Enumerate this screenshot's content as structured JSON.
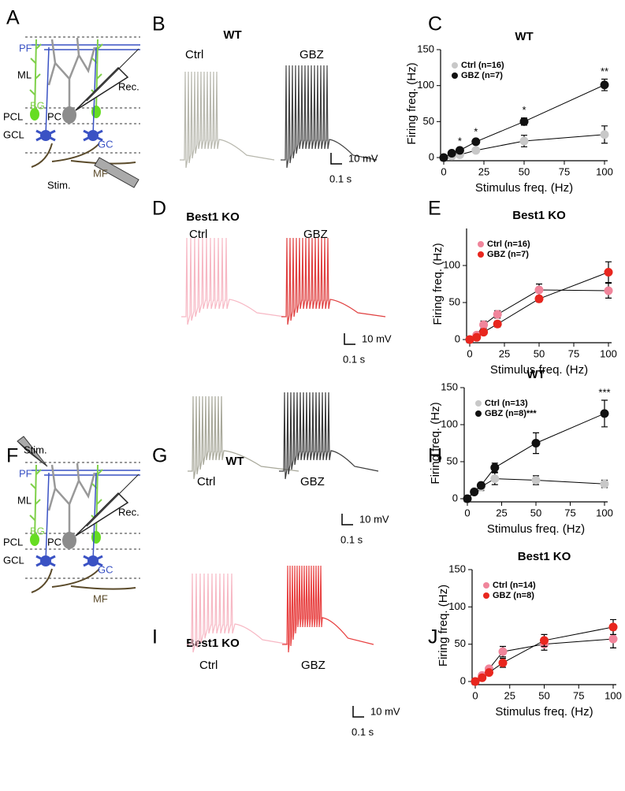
{
  "panel_labels": [
    "A",
    "B",
    "C",
    "D",
    "E",
    "F",
    "G",
    "H",
    "I",
    "J"
  ],
  "diagrams": [
    {
      "labels": [
        "PF",
        "ML",
        "BG",
        "PCL",
        "PC",
        "GCL",
        "GC",
        "MF",
        "Rec.",
        "Stim."
      ]
    },
    {
      "labels": [
        "PF",
        "ML",
        "BG",
        "PCL",
        "PC",
        "GCL",
        "GC",
        "MF",
        "Rec.",
        "Stim."
      ]
    }
  ],
  "traces": [
    {
      "title": "WT",
      "conditions": [
        "Ctrl",
        "GBZ"
      ],
      "scale": [
        "10 mV",
        "0.1 s"
      ]
    },
    {
      "title": "Best1 KO",
      "conditions": [
        "Ctrl",
        "GBZ"
      ],
      "scale": [
        "10 mV",
        "0.1 s"
      ]
    },
    {
      "title": "WT",
      "conditions": [
        "Ctrl",
        "GBZ"
      ],
      "scale": [
        "10 mV",
        "0.1 s"
      ]
    },
    {
      "title": "Best1 KO",
      "conditions": [
        "Ctrl",
        "GBZ"
      ],
      "scale": [
        "10 mV",
        "0.1 s"
      ]
    }
  ],
  "chart_data": [
    {
      "type": "line",
      "title": "WT",
      "xlabel": "Stimulus freq. (Hz)",
      "ylabel": "Firing freq. (Hz)",
      "x": [
        0,
        5,
        10,
        20,
        50,
        100
      ],
      "xlim": [
        0,
        100
      ],
      "xticks": [
        0,
        25,
        50,
        75,
        100
      ],
      "ylim": [
        0,
        150
      ],
      "yticks": [
        0,
        50,
        100,
        150
      ],
      "legend": "upper left",
      "series": [
        {
          "name": "Ctrl (n=16)",
          "color": "#c8c8c8",
          "values": [
            0,
            2,
            4,
            10,
            23,
            32
          ],
          "errors": [
            0,
            1,
            2,
            3,
            8,
            12
          ]
        },
        {
          "name": "GBZ (n=7)",
          "color": "#111111",
          "values": [
            0,
            6,
            10,
            22,
            50,
            101
          ],
          "errors": [
            0,
            2,
            2,
            3,
            5,
            8
          ],
          "significance": [
            null,
            null,
            "*",
            "*",
            "*",
            "**"
          ]
        }
      ]
    },
    {
      "type": "line",
      "title": "Best1 KO",
      "xlabel": "Stimulus freq. (Hz)",
      "ylabel": "Firing freq. (Hz)",
      "x": [
        0,
        5,
        10,
        20,
        50,
        100
      ],
      "xlim": [
        0,
        100
      ],
      "xticks": [
        0,
        25,
        50,
        75,
        100
      ],
      "ylim": [
        0,
        150
      ],
      "yticks": [
        0,
        50,
        100
      ],
      "legend": "upper left",
      "series": [
        {
          "name": "Ctrl (n=16)",
          "color": "#f0859b",
          "values": [
            0,
            6,
            20,
            34,
            67,
            66
          ],
          "errors": [
            0,
            3,
            5,
            5,
            8,
            10
          ]
        },
        {
          "name": "GBZ (n=7)",
          "color": "#e8261e",
          "values": [
            0,
            3,
            10,
            21,
            55,
            91
          ],
          "errors": [
            0,
            2,
            3,
            4,
            4,
            14
          ]
        }
      ]
    },
    {
      "type": "line",
      "title": "WT",
      "xlabel": "Stimulus freq. (Hz)",
      "ylabel": "Firing freq. (Hz)",
      "x": [
        0,
        5,
        10,
        20,
        50,
        100
      ],
      "xlim": [
        0,
        100
      ],
      "xticks": [
        0,
        25,
        50,
        75,
        100
      ],
      "ylim": [
        0,
        150
      ],
      "yticks": [
        0,
        50,
        100,
        150
      ],
      "legend": "upper left",
      "series": [
        {
          "name": "Ctrl (n=13)",
          "color": "#c8c8c8",
          "values": [
            0,
            10,
            16,
            27,
            25,
            20
          ],
          "errors": [
            0,
            2,
            5,
            8,
            6,
            5
          ]
        },
        {
          "name": "GBZ (n=8)***",
          "color": "#111111",
          "values": [
            0,
            9,
            18,
            42,
            75,
            115
          ],
          "errors": [
            0,
            2,
            3,
            6,
            14,
            18
          ],
          "significance": [
            null,
            null,
            null,
            null,
            null,
            "***"
          ]
        }
      ]
    },
    {
      "type": "line",
      "title": "Best1 KO",
      "xlabel": "Stimulus freq. (Hz)",
      "ylabel": "Firing freq. (Hz)",
      "x": [
        0,
        5,
        10,
        20,
        50,
        100
      ],
      "xlim": [
        0,
        100
      ],
      "xticks": [
        0,
        25,
        50,
        75,
        100
      ],
      "ylim": [
        0,
        150
      ],
      "yticks": [
        0,
        50,
        100,
        150
      ],
      "legend": "upper left",
      "series": [
        {
          "name": "Ctrl (n=14)",
          "color": "#f0859b",
          "values": [
            0,
            8,
            17,
            40,
            50,
            57
          ],
          "errors": [
            0,
            2,
            3,
            7,
            8,
            12
          ]
        },
        {
          "name": "GBZ (n=8)",
          "color": "#e8261e",
          "values": [
            0,
            5,
            12,
            25,
            55,
            73
          ],
          "errors": [
            0,
            2,
            3,
            6,
            8,
            10
          ]
        }
      ]
    }
  ]
}
